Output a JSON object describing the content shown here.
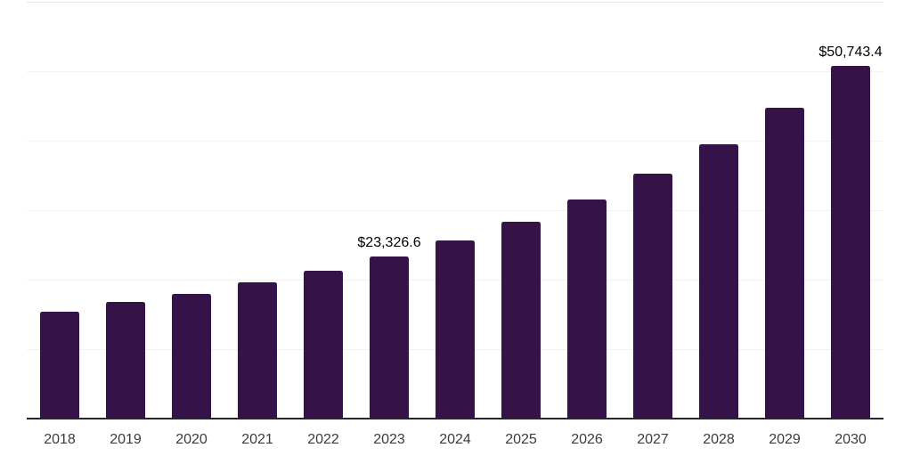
{
  "chart_data": {
    "type": "bar",
    "title": "",
    "xlabel": "",
    "ylabel": "",
    "categories": [
      "2018",
      "2019",
      "2020",
      "2021",
      "2022",
      "2023",
      "2024",
      "2025",
      "2026",
      "2027",
      "2028",
      "2029",
      "2030"
    ],
    "values": [
      15400,
      16800,
      18000,
      19600,
      21300,
      23326.6,
      25600,
      28300,
      31500,
      35200,
      39500,
      44700,
      50743.4
    ],
    "labeled_points": [
      {
        "category": "2023",
        "label": "$23,326.6"
      },
      {
        "category": "2030",
        "label": "$50,743.4"
      }
    ],
    "value_prefix": "$",
    "ylim": [
      0,
      60000
    ],
    "grid_interval": 10000,
    "grid": "horizontal",
    "y_axis_labels_visible": false,
    "legend": "none"
  },
  "style": {
    "bar_color": "#351349",
    "axis_line_color": "#262626",
    "gridline_color": "#f2f2f2",
    "top_gridline_color": "#e7e7e7",
    "data_label_color": "#000000",
    "tick_label_color": "#3b3b3b",
    "background": "#ffffff"
  }
}
